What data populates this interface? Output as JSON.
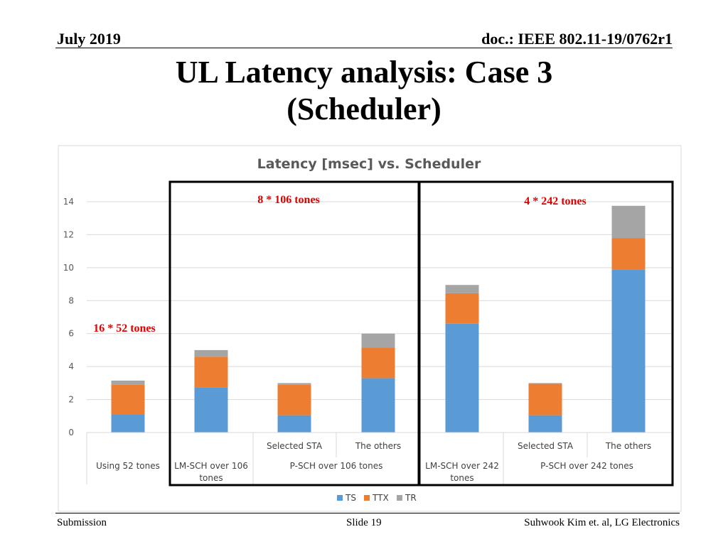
{
  "header": {
    "date": "July 2019",
    "doc": "doc.: IEEE 802.11-19/0762r1"
  },
  "slide_title_line1": "UL Latency analysis: Case 3",
  "slide_title_line2": "(Scheduler)",
  "footer": {
    "left": "Submission",
    "center": "Slide 19",
    "right": "Suhwook Kim et. al, LG Electronics"
  },
  "annotations": {
    "box1": "8 * 106 tones",
    "box2": "4 * 242 tones",
    "left": "16 * 52 tones"
  },
  "colors": {
    "TS": "#5b9bd5",
    "TTX": "#ed7d31",
    "TR": "#a5a5a5",
    "annotation": "#e00000"
  },
  "chart_data": {
    "type": "bar",
    "stacked": true,
    "title": "Latency [msec] vs. Scheduler",
    "ylim": [
      0,
      14
    ],
    "yticks": [
      0,
      2,
      4,
      6,
      8,
      10,
      12,
      14
    ],
    "grid": true,
    "legend_position": "bottom",
    "categories": [
      "Using 52 tones",
      "LM-SCH over 106 tones",
      "Selected STA",
      "The others",
      "LM-SCH over 242 tones",
      "Selected STA",
      "The others"
    ],
    "category_groups": [
      {
        "label": "Using 52 tones",
        "members": [
          0
        ]
      },
      {
        "label": "LM-SCH over 106 tones",
        "members": [
          1
        ]
      },
      {
        "label": "P-SCH over 106 tones",
        "members": [
          2,
          3
        ]
      },
      {
        "label": "LM-SCH over 242 tones",
        "members": [
          4
        ]
      },
      {
        "label": "P-SCH over 242 tones",
        "members": [
          5,
          6
        ]
      }
    ],
    "series": [
      {
        "name": "TS",
        "values": [
          1.1,
          2.75,
          1.05,
          3.3,
          6.6,
          1.05,
          9.9
        ]
      },
      {
        "name": "TTX",
        "values": [
          1.8,
          1.85,
          1.85,
          1.85,
          1.85,
          1.9,
          1.9
        ]
      },
      {
        "name": "TR",
        "values": [
          0.25,
          0.4,
          0.1,
          0.85,
          0.5,
          0.05,
          1.95
        ]
      }
    ]
  }
}
